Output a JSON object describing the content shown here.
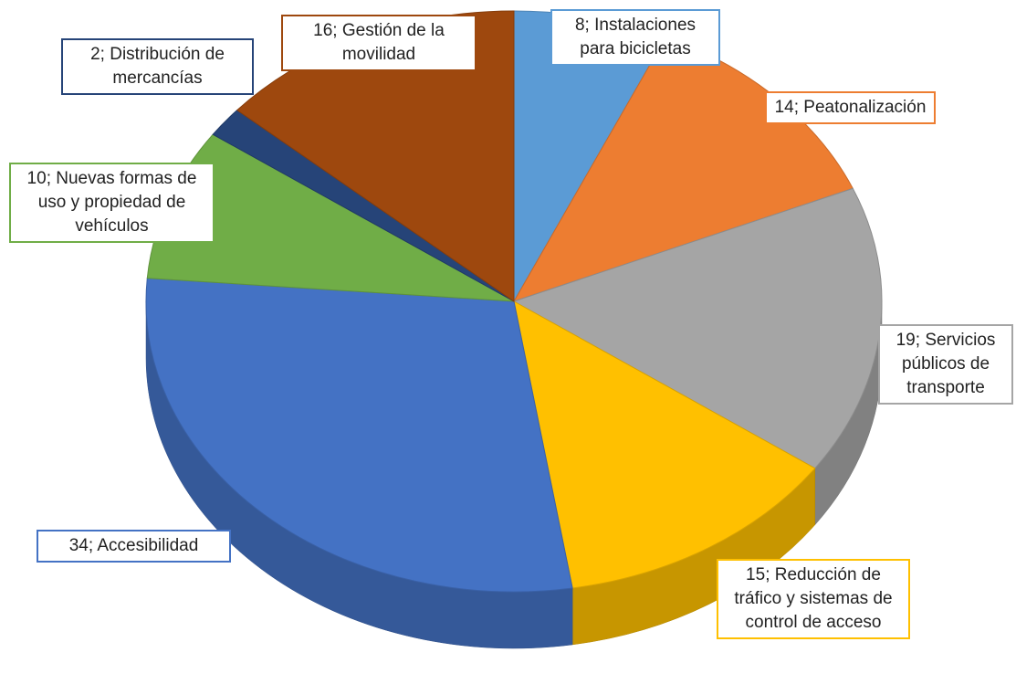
{
  "chart_data": {
    "type": "pie3d",
    "categories": [
      "Instalaciones para bicicletas",
      "Peatonalización",
      "Servicios públicos de transporte",
      "Reducción de tráfico y sistemas de control de acceso",
      "Accesibilidad",
      "Nuevas formas de uso y propiedad de vehículos",
      "Distribución de mercancías",
      "Gestión de la movilidad"
    ],
    "values": [
      8,
      14,
      19,
      15,
      34,
      10,
      2,
      16
    ],
    "colors": [
      "#5b9bd5",
      "#ed7d31",
      "#a5a5a5",
      "#ffc000",
      "#4472c4",
      "#70ad47",
      "#264478",
      "#9e480e"
    ],
    "label_separator": "; "
  }
}
